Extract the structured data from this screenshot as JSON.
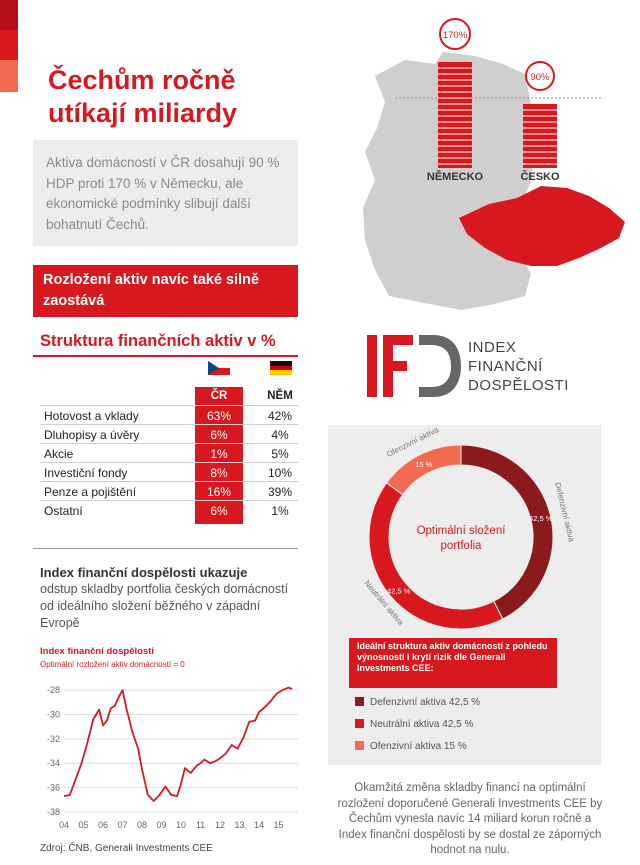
{
  "headline": "Čechům ročně utíkají miliardy",
  "intro": "Aktiva domácností v ČR dosahují 90 % HDP proti 170 % v Německu, ale ekonomické podmínky slibují další bohatnutí Čechů.",
  "red_box": "Rozložení aktiv navíc také silně zaostává",
  "map": {
    "germany_label": "NĚMECKO",
    "czech_label": "ČESKO",
    "germany_badge": "170%",
    "czech_badge": "90%"
  },
  "assets": {
    "title": "Struktura finančních aktiv v %",
    "col_cz": "ČR",
    "col_de": "NĚM",
    "rows": [
      {
        "label": "Hotovost a vklady",
        "cz": "63%",
        "de": "42%"
      },
      {
        "label": "Dluhopisy a úvěry",
        "cz": "6%",
        "de": "4%"
      },
      {
        "label": "Akcie",
        "cz": "1%",
        "de": "5%"
      },
      {
        "label": "Investiční fondy",
        "cz": "8%",
        "de": "10%"
      },
      {
        "label": "Penze a pojištění",
        "cz": "16%",
        "de": "39%"
      },
      {
        "label": "Ostatní",
        "cz": "6%",
        "de": "1%"
      }
    ]
  },
  "ifd": {
    "line1": "INDEX",
    "line2": "FINANČNÍ",
    "line3": "DOSPĚLOSTI"
  },
  "index_section": {
    "title": "Index finanční dospělosti ukazuje",
    "desc": "odstup skladby portfolia českých domácností od ideálního složení běžného v západní Evropě"
  },
  "legend": {
    "title": "Ideální struktura aktiv domácností z pohledu výnosnosti i krytí rizik dle Generali Investments CEE:",
    "items": [
      {
        "label": "Defenzivní aktiva 42,5 %",
        "color": "#8b1a1d"
      },
      {
        "label": "Neutrální aktiva 42,5 %",
        "color": "#d7191f"
      },
      {
        "label": "Ofenzivní aktiva 15 %",
        "color": "#f26a52"
      }
    ]
  },
  "conclusion": "Okamžitá změna skladby financí na optimální rozložení doporučené Generali Investments CEE by Čechům vynesla navíc 14 miliard korun ročně a Index finanční dospělosti by se dostal ze záporných hodnot na nulu.",
  "source": "Zdroj: ČNB, Generali Investments CEE",
  "colors": {
    "accent": "#d7191f",
    "dark_red": "#8b1a1d",
    "light_red": "#f26a52",
    "panel_gray": "#ededed"
  },
  "chart_data": [
    {
      "type": "pie",
      "title": "Optimální složení portfolia",
      "categories": [
        "Defenzivní aktiva",
        "Neutrální aktiva",
        "Ofenzivní aktiva"
      ],
      "values": [
        42.5,
        42.5,
        15
      ],
      "value_labels": [
        "42,5 %",
        "42,5 %",
        "15 %"
      ],
      "colors": [
        "#8b1a1d",
        "#d7191f",
        "#f26a52"
      ]
    },
    {
      "type": "line",
      "title": "Index finanční dospělosti",
      "subtitle": "Optimální rozložení aktiv domácností = 0",
      "x_tick_labels": [
        "04",
        "05",
        "06",
        "07",
        "08",
        "09",
        "10",
        "11",
        "12",
        "13",
        "14",
        "15"
      ],
      "y_ticks": [
        -28,
        -30,
        -32,
        -34,
        -36,
        -38
      ],
      "y_tick_labels": [
        "-28",
        "-30",
        "-32",
        "-34",
        "-36",
        "-38"
      ],
      "ylim": [
        -38,
        -27.5
      ],
      "xlim": [
        2004.0,
        2016.0
      ],
      "grid": true,
      "series": [
        {
          "x": [
            2004.0,
            2004.3,
            2004.6,
            2004.9,
            2005.2,
            2005.5,
            2005.8,
            2006.0,
            2006.2,
            2006.4,
            2006.6,
            2006.8,
            2007.0,
            2007.2,
            2007.5,
            2007.8,
            2008.0,
            2008.3,
            2008.6,
            2008.9,
            2009.2,
            2009.5,
            2009.8,
            2010.0,
            2010.2,
            2010.5,
            2010.8,
            2011.0,
            2011.2,
            2011.5,
            2011.8,
            2012.0,
            2012.3,
            2012.6,
            2012.9,
            2013.2,
            2013.5,
            2013.8,
            2014.0,
            2014.3,
            2014.6,
            2014.9,
            2015.2,
            2015.5,
            2015.7
          ],
          "y": [
            -36.7,
            -36.6,
            -35.3,
            -34.0,
            -32.3,
            -30.4,
            -29.6,
            -30.9,
            -30.5,
            -29.5,
            -29.3,
            -28.6,
            -28.0,
            -29.5,
            -31.4,
            -32.8,
            -34.5,
            -36.6,
            -37.1,
            -36.6,
            -35.9,
            -36.6,
            -36.7,
            -35.7,
            -34.4,
            -34.8,
            -34.2,
            -34.0,
            -33.7,
            -34.0,
            -33.8,
            -33.6,
            -33.2,
            -32.5,
            -32.8,
            -31.9,
            -30.6,
            -30.5,
            -29.8,
            -29.4,
            -28.9,
            -28.3,
            -28.0,
            -27.8,
            -27.9
          ]
        }
      ]
    }
  ]
}
